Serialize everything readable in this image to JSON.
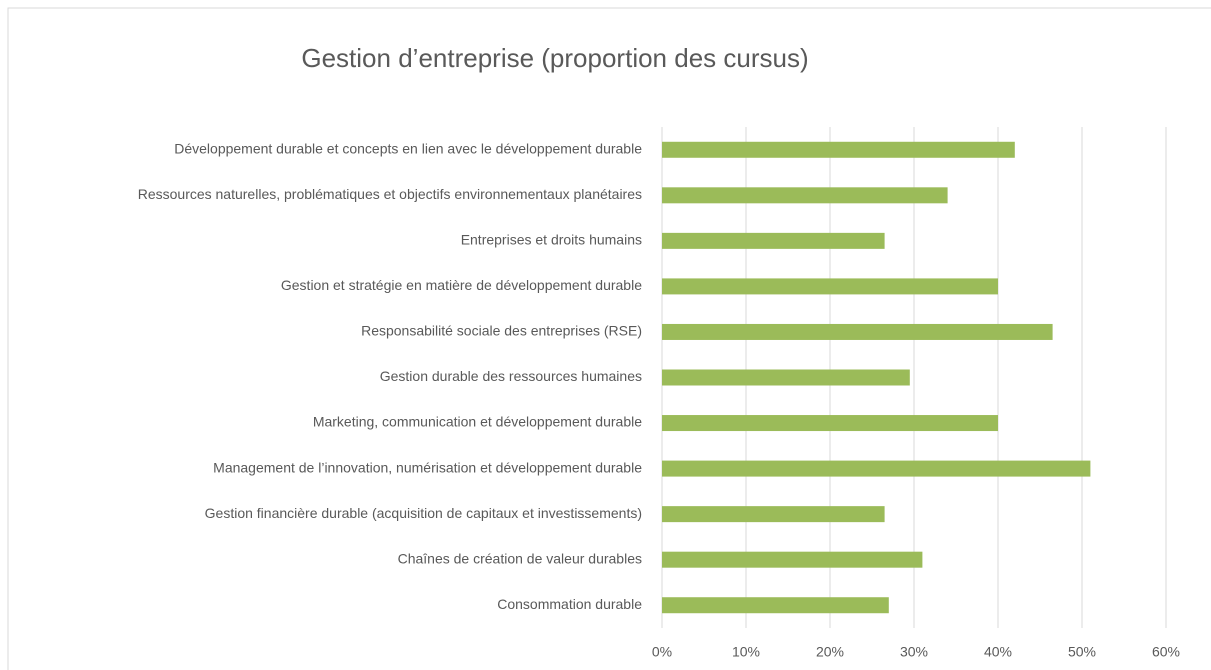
{
  "chart_data": {
    "type": "bar",
    "orientation": "horizontal",
    "title": "Gestion d’entreprise (proportion des cursus)",
    "categories": [
      "Développement durable et concepts en lien avec le développement durable",
      "Ressources naturelles, problématiques et objectifs environnementaux planétaires",
      "Entreprises et droits humains",
      "Gestion et stratégie en matière de développement durable",
      "Responsabilité sociale des entreprises (RSE)",
      "Gestion durable des ressources humaines",
      "Marketing, communication et développement durable",
      "Management de l’innovation, numérisation et développement durable",
      "Gestion financière durable (acquisition de capitaux et investissements)",
      "Chaînes de création de valeur durables",
      "Consommation durable"
    ],
    "values": [
      42,
      34,
      26.5,
      40,
      46.5,
      29.5,
      40,
      51,
      26.5,
      31,
      27
    ],
    "color": "#9bbb59",
    "xlim": [
      0,
      60
    ],
    "xticks": [
      {
        "value": 0,
        "label": "0%"
      },
      {
        "value": 10,
        "label": "10%"
      },
      {
        "value": 20,
        "label": "20%"
      },
      {
        "value": 30,
        "label": "30%"
      },
      {
        "value": 40,
        "label": "40%"
      },
      {
        "value": 50,
        "label": "50%"
      },
      {
        "value": 60,
        "label": "60%"
      }
    ],
    "grid": true
  }
}
